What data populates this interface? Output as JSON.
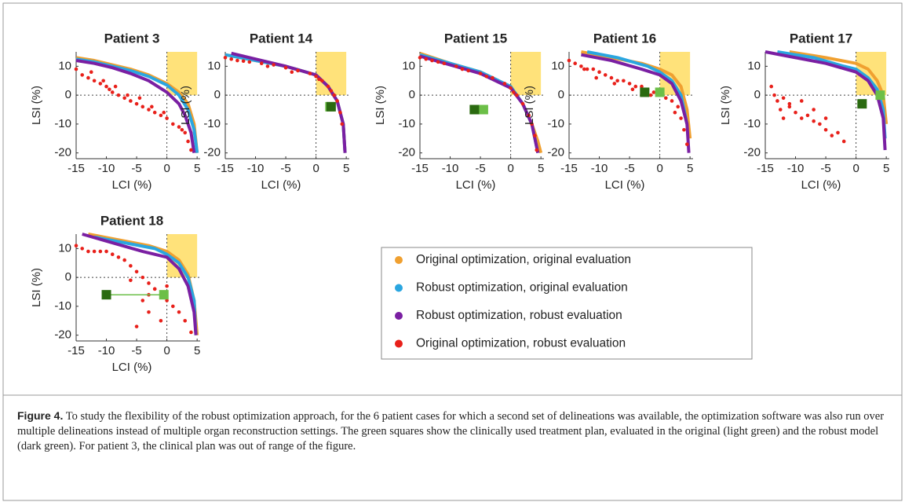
{
  "chart_data": [
    {
      "type": "line",
      "title": "Patient 3",
      "xlabel": "LCI (%)",
      "ylabel": "LSI (%)",
      "xlim": [
        -15,
        5.5
      ],
      "ylim": [
        -22,
        15
      ],
      "xticks": [
        -15,
        -10,
        -5,
        0,
        5
      ],
      "yticks": [
        -20,
        -10,
        0,
        10
      ],
      "zero_lines": true,
      "series": [
        {
          "color": "#f0a030",
          "style": "line",
          "x": [
            -15,
            -12,
            -9,
            -6,
            -3,
            0,
            2,
            3.5,
            4.5,
            5
          ],
          "values": [
            13,
            12,
            10.5,
            9,
            7,
            4,
            1,
            -3,
            -10,
            -20
          ]
        },
        {
          "color": "#2aa6e0",
          "style": "line",
          "x": [
            -15,
            -12,
            -9,
            -6,
            -3,
            0,
            2,
            3.5,
            4.5,
            5
          ],
          "values": [
            12.5,
            11.5,
            10,
            8.5,
            6.5,
            3.5,
            0,
            -5,
            -12,
            -20
          ]
        },
        {
          "color": "#7a1fa2",
          "style": "line",
          "x": [
            -15,
            -12,
            -9,
            -6,
            -3,
            0,
            2,
            3,
            4,
            4.5
          ],
          "values": [
            12,
            11,
            9.5,
            7.5,
            5,
            1,
            -3,
            -7,
            -13,
            -20
          ]
        },
        {
          "color": "#e8201a",
          "style": "points",
          "x": [
            -15,
            -14,
            -13,
            -12,
            -11,
            -10,
            -9.5,
            -9,
            -8,
            -7,
            -6,
            -5,
            -4,
            -3,
            -2,
            -1,
            0,
            1,
            2,
            3,
            3.5,
            4,
            -12.5,
            -10.5,
            -8.5,
            -6.5,
            -4.5,
            -2.5,
            -0.5,
            2.5
          ],
          "values": [
            9,
            7,
            6,
            5,
            4,
            3,
            2,
            1,
            0,
            -1,
            -2,
            -3,
            -4,
            -5,
            -6,
            -7,
            -8,
            -10,
            -11,
            -13,
            -16,
            -19,
            8,
            5,
            3,
            0,
            -1,
            -4,
            -6,
            -12
          ]
        }
      ]
    },
    {
      "type": "line",
      "title": "Patient 14",
      "xlabel": "LCI (%)",
      "ylabel": "LSI (%)",
      "xlim": [
        -15,
        5.5
      ],
      "ylim": [
        -22,
        15
      ],
      "xticks": [
        -15,
        -10,
        -5,
        0,
        5
      ],
      "yticks": [
        -20,
        -10,
        0,
        10
      ],
      "zero_lines": true,
      "series": [
        {
          "color": "#f0a030",
          "style": "line",
          "x": [
            -15,
            -10,
            -5,
            0,
            2,
            3.5,
            4.5,
            4.8
          ],
          "values": [
            14,
            12,
            10,
            7,
            3,
            -2,
            -10,
            -20
          ]
        },
        {
          "color": "#2aa6e0",
          "style": "line",
          "x": [
            -15,
            -10,
            -5,
            0,
            2,
            3.5,
            4.5,
            4.8
          ],
          "values": [
            14,
            12,
            10,
            7,
            3,
            -2,
            -10,
            -20
          ]
        },
        {
          "color": "#7a1fa2",
          "style": "line",
          "x": [
            -14,
            -10,
            -5,
            0,
            2,
            3.5,
            4.5,
            4.8
          ],
          "values": [
            14.5,
            12.5,
            10,
            7,
            3,
            -2,
            -10,
            -20
          ]
        },
        {
          "color": "#e8201a",
          "style": "points",
          "x": [
            -15,
            -13,
            -11,
            -9,
            -7,
            -5,
            -3,
            -1,
            0,
            1,
            2,
            3,
            3.5,
            4,
            4.3,
            -14,
            -12,
            -8,
            -4,
            0.5,
            2.5
          ],
          "values": [
            13,
            12,
            11.5,
            11,
            10.5,
            9.5,
            8.5,
            7.5,
            6.5,
            5,
            3,
            0,
            -2,
            -6,
            -10,
            12.5,
            11.8,
            10,
            8,
            5.5,
            1.5
          ]
        },
        {
          "color": "#6cbf48",
          "style": "square",
          "x": [
            2.3
          ],
          "values": [
            -4
          ]
        },
        {
          "color": "#2a6a10",
          "style": "square",
          "x": [
            2.5
          ],
          "values": [
            -4
          ]
        }
      ]
    },
    {
      "type": "line",
      "title": "Patient 15",
      "xlabel": "LCI (%)",
      "ylabel": "LSI (%)",
      "xlim": [
        -15,
        5.5
      ],
      "ylim": [
        -22,
        15
      ],
      "xticks": [
        -15,
        -10,
        -5,
        0,
        5
      ],
      "yticks": [
        -20,
        -10,
        0,
        10
      ],
      "zero_lines": true,
      "series": [
        {
          "color": "#f0a030",
          "style": "line",
          "x": [
            -15,
            -10,
            -5,
            0,
            2,
            3.5,
            4.5,
            5
          ],
          "values": [
            14.5,
            11,
            8,
            3,
            -3,
            -10,
            -16,
            -20
          ]
        },
        {
          "color": "#2aa6e0",
          "style": "line",
          "x": [
            -15,
            -10,
            -5,
            0,
            2,
            3.5,
            4.5
          ],
          "values": [
            14,
            11,
            8,
            3,
            -3,
            -10,
            -20
          ]
        },
        {
          "color": "#7a1fa2",
          "style": "line",
          "x": [
            -15,
            -10,
            -5,
            0,
            2,
            3.5,
            4.5
          ],
          "values": [
            13.5,
            10.5,
            7.5,
            2.5,
            -3,
            -10,
            -20
          ]
        },
        {
          "color": "#e8201a",
          "style": "points",
          "x": [
            -15,
            -13,
            -11,
            -9,
            -7,
            -5,
            -3,
            -1,
            0,
            1,
            2,
            3,
            3.5,
            4,
            4.3,
            -14,
            -12,
            -8,
            -4,
            0.5
          ],
          "values": [
            13,
            12,
            11,
            10,
            8.5,
            7.5,
            6,
            4,
            2.5,
            0,
            -3,
            -7,
            -10,
            -14,
            -19,
            12.5,
            11.5,
            9,
            6.5,
            1
          ]
        },
        {
          "color": "#6cbf48",
          "style": "square",
          "x": [
            -4.5
          ],
          "values": [
            -5
          ]
        },
        {
          "color": "#2a6a10",
          "style": "square",
          "x": [
            -6
          ],
          "values": [
            -5
          ]
        }
      ]
    },
    {
      "type": "line",
      "title": "Patient 16",
      "xlabel": "LCI (%)",
      "ylabel": "LSI (%)",
      "xlim": [
        -15,
        5.5
      ],
      "ylim": [
        -22,
        15
      ],
      "xticks": [
        -15,
        -10,
        -5,
        0,
        5
      ],
      "yticks": [
        -20,
        -10,
        0,
        10
      ],
      "zero_lines": true,
      "series": [
        {
          "color": "#f0a030",
          "style": "line",
          "x": [
            -13,
            -8,
            -3,
            0,
            2,
            3.5,
            4.5,
            5
          ],
          "values": [
            15,
            13,
            11,
            9,
            7,
            3,
            -5,
            -15
          ]
        },
        {
          "color": "#2aa6e0",
          "style": "line",
          "x": [
            -12,
            -7,
            -2,
            0,
            2,
            3.5,
            4.5
          ],
          "values": [
            15,
            13,
            10,
            8,
            5,
            0,
            -10
          ]
        },
        {
          "color": "#7a1fa2",
          "style": "line",
          "x": [
            -13,
            -8,
            -3,
            0,
            2,
            3.5,
            4.5,
            4.8
          ],
          "values": [
            14,
            12,
            9,
            7,
            4,
            -2,
            -10,
            -20
          ]
        },
        {
          "color": "#e8201a",
          "style": "points",
          "x": [
            -15,
            -14,
            -13,
            -12,
            -11,
            -10,
            -9,
            -8,
            -7,
            -6,
            -5,
            -4,
            -3,
            -2,
            -1,
            0,
            1,
            2,
            3,
            3.5,
            4,
            4.5,
            -12.5,
            -10.5,
            -7.5,
            -4.5,
            -1.5,
            2.5
          ],
          "values": [
            12,
            11,
            10,
            9,
            9,
            8,
            7,
            6,
            5,
            5,
            4,
            3,
            3,
            2,
            1,
            0,
            -1,
            -2,
            -4,
            -8,
            -12,
            -17,
            9,
            6,
            4,
            2,
            0,
            -6
          ]
        },
        {
          "color": "#6cbf48",
          "style": "square",
          "x": [
            0
          ],
          "values": [
            1
          ]
        },
        {
          "color": "#2a6a10",
          "style": "square",
          "x": [
            -2.5
          ],
          "values": [
            1
          ]
        }
      ]
    },
    {
      "type": "line",
      "title": "Patient 17",
      "xlabel": "LCI (%)",
      "ylabel": "LSI (%)",
      "xlim": [
        -15,
        5.5
      ],
      "ylim": [
        -22,
        15
      ],
      "xticks": [
        -15,
        -10,
        -5,
        0,
        5
      ],
      "yticks": [
        -20,
        -10,
        0,
        10
      ],
      "zero_lines": true,
      "series": [
        {
          "color": "#f0a030",
          "style": "line",
          "x": [
            -11,
            -5,
            0,
            2,
            3.5,
            4.5,
            5
          ],
          "values": [
            15,
            13,
            11,
            9,
            5,
            0,
            -10
          ]
        },
        {
          "color": "#2aa6e0",
          "style": "line",
          "x": [
            -13,
            -7,
            -2,
            0,
            2,
            3.5,
            4.5,
            4.8
          ],
          "values": [
            15,
            13,
            10,
            9,
            6,
            2,
            -5,
            -15
          ]
        },
        {
          "color": "#7a1fa2",
          "style": "line",
          "x": [
            -15,
            -10,
            -5,
            0,
            2,
            3.5,
            4.5,
            4.8
          ],
          "values": [
            15,
            13,
            11,
            8,
            5,
            0,
            -8,
            -19
          ]
        },
        {
          "color": "#e8201a",
          "style": "points",
          "x": [
            -14,
            -13.5,
            -13,
            -12.5,
            -12,
            -11,
            -10,
            -9,
            -8,
            -7,
            -6,
            -5,
            -4,
            -3,
            -12,
            -11,
            -9,
            -7,
            -5,
            -2
          ],
          "values": [
            3,
            0,
            -2,
            -5,
            -1,
            -4,
            -6,
            -8,
            -7,
            -9,
            -10,
            -12,
            -14,
            -13,
            -8,
            -3,
            -2,
            -5,
            -8,
            -16
          ]
        },
        {
          "color": "#6cbf48",
          "style": "square",
          "x": [
            4
          ],
          "values": [
            0
          ]
        },
        {
          "color": "#2a6a10",
          "style": "square",
          "x": [
            1
          ],
          "values": [
            -3
          ]
        }
      ]
    },
    {
      "type": "line",
      "title": "Patient 18",
      "xlabel": "LCI (%)",
      "ylabel": "LSI (%)",
      "xlim": [
        -15,
        5.5
      ],
      "ylim": [
        -22,
        15
      ],
      "xticks": [
        -15,
        -10,
        -5,
        0,
        5
      ],
      "yticks": [
        -20,
        -10,
        0,
        10
      ],
      "zero_lines": true,
      "clinical_link": true,
      "series": [
        {
          "color": "#f0a030",
          "style": "line",
          "x": [
            -13,
            -8,
            -3,
            0,
            2,
            3.5,
            4.5,
            5
          ],
          "values": [
            15,
            13,
            11,
            9,
            6,
            1,
            -8,
            -20
          ]
        },
        {
          "color": "#2aa6e0",
          "style": "line",
          "x": [
            -12,
            -7,
            -2,
            0,
            2,
            3.5,
            4.5,
            4.8
          ],
          "values": [
            14,
            12,
            10,
            8,
            5,
            0,
            -8,
            -20
          ]
        },
        {
          "color": "#7a1fa2",
          "style": "line",
          "x": [
            -14,
            -9,
            -4,
            0,
            2,
            3.5,
            4.5,
            4.8
          ],
          "values": [
            15,
            12,
            9,
            7,
            3,
            -3,
            -12,
            -20
          ]
        },
        {
          "color": "#e8201a",
          "style": "points",
          "x": [
            -15,
            -14,
            -13,
            -12,
            -11,
            -10,
            -9,
            -8,
            -7,
            -6,
            -5,
            -4,
            -3,
            -2,
            -1,
            0,
            1,
            2,
            3,
            4,
            -5,
            -3,
            -1,
            -4,
            -2,
            0,
            -6,
            -3
          ],
          "values": [
            11,
            10,
            9,
            9,
            9,
            9,
            8,
            7,
            6,
            4,
            2,
            0,
            -2,
            -4,
            -6,
            -8,
            -10,
            -12,
            -15,
            -19,
            -17,
            -12,
            -15,
            -8,
            -4,
            -3,
            -1,
            -6
          ]
        },
        {
          "color": "#6cbf48",
          "style": "square",
          "x": [
            -0.5
          ],
          "values": [
            -6
          ]
        },
        {
          "color": "#2a6a10",
          "style": "square",
          "x": [
            -10
          ],
          "values": [
            -6
          ]
        }
      ]
    }
  ],
  "target_region": {
    "x": [
      0,
      5
    ],
    "y": [
      0,
      15
    ],
    "color": "#ffe27a"
  },
  "legend": [
    {
      "name": "Original optimization, original evaluation",
      "color": "#f0a030"
    },
    {
      "name": "Robust optimization, original evaluation",
      "color": "#2aa6e0"
    },
    {
      "name": "Robust optimization, robust evaluation",
      "color": "#7a1fa2"
    },
    {
      "name": "Original optimization, robust evaluation",
      "color": "#e8201a"
    }
  ],
  "caption": {
    "label": "Figure 4.",
    "text": "To study the flexibility of the robust optimization approach, for the 6 patient cases for which a second set of delineations was available, the optimization software was also run over multiple delineations instead of multiple organ reconstruction settings. The green squares show the clinically used treatment plan, evaluated in the original (light green) and the robust model (dark green). For patient 3, the clinical plan was out of range of the figure."
  }
}
